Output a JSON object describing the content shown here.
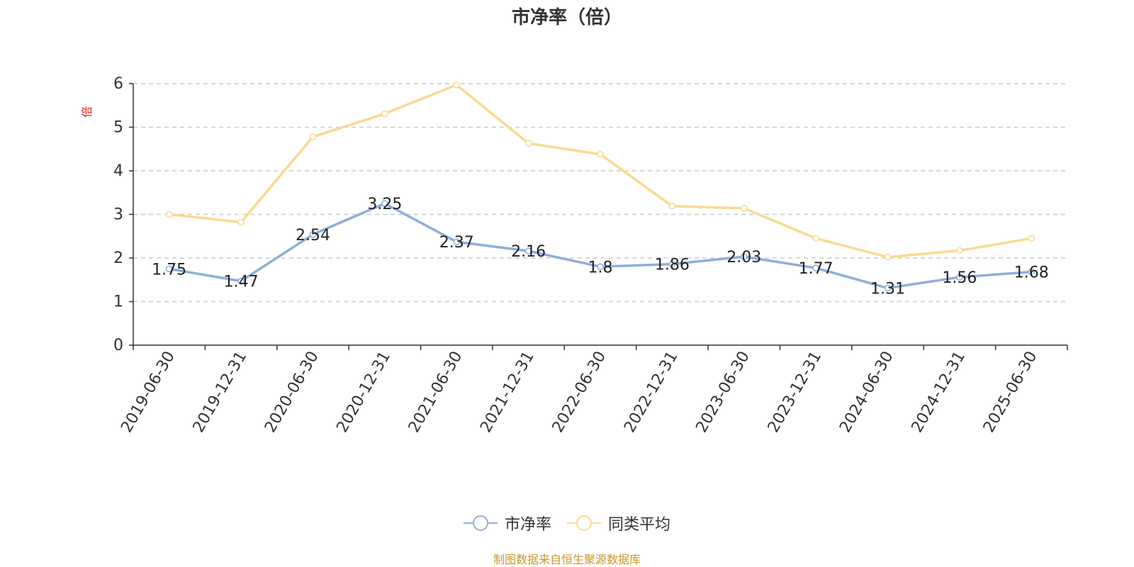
{
  "title": "市净率（倍）",
  "source_note": "制图数据来自恒生聚源数据库",
  "chart_data": {
    "type": "line",
    "title": "市净率（倍）",
    "ylabel": "倍",
    "xlabel": "",
    "ylim": [
      0,
      6
    ],
    "yticks": [
      "0",
      "1",
      "2",
      "3",
      "4",
      "5",
      "6"
    ],
    "grid": true,
    "legend_position": "bottom-center",
    "categories": [
      "2019-06-30",
      "2019-12-31",
      "2020-06-30",
      "2020-12-31",
      "2021-06-30",
      "2021-12-31",
      "2022-06-30",
      "2022-12-31",
      "2023-06-30",
      "2023-12-31",
      "2024-06-30",
      "2024-12-31",
      "2025-06-30"
    ],
    "series": [
      {
        "name": "市净率",
        "color": "#8eaedb",
        "values": [
          1.75,
          1.47,
          2.54,
          3.25,
          2.37,
          2.16,
          1.8,
          1.86,
          2.03,
          1.77,
          1.31,
          1.56,
          1.68
        ],
        "labels": [
          "1.75",
          "1.47",
          "2.54",
          "3.25",
          "2.37",
          "2.16",
          "1.8",
          "1.86",
          "2.03",
          "1.77",
          "1.31",
          "1.56",
          "1.68"
        ]
      },
      {
        "name": "同类平均",
        "color": "#fad990",
        "values": [
          3.0,
          2.82,
          4.78,
          5.31,
          5.97,
          4.63,
          4.38,
          3.19,
          3.14,
          2.45,
          2.02,
          2.17,
          2.45
        ]
      }
    ]
  }
}
